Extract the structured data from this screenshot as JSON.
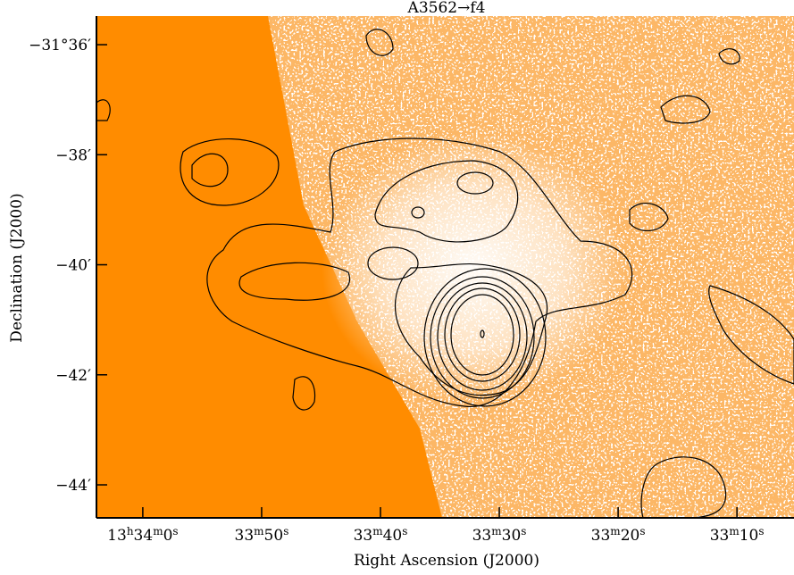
{
  "chart_data": {
    "type": "image",
    "title": "A3562→f4",
    "x_label": "Right Ascension (J2000)",
    "y_label": "Declination (J2000)",
    "xlim": [
      63.9,
      5.2
    ],
    "ylim": [
      -35.48,
      -44.6
    ],
    "xticks": [
      {
        "value": 60,
        "label": [
          "13",
          "h",
          "34",
          "m",
          "0",
          "s"
        ]
      },
      {
        "value": 50,
        "label": [
          "33",
          "m",
          "50",
          "s"
        ]
      },
      {
        "value": 40,
        "label": [
          "33",
          "m",
          "40",
          "s"
        ]
      },
      {
        "value": 30,
        "label": [
          "33",
          "m",
          "30",
          "s"
        ]
      },
      {
        "value": 20,
        "label": [
          "33",
          "m",
          "20",
          "s"
        ]
      },
      {
        "value": 10,
        "label": [
          "33",
          "m",
          "10",
          "s"
        ]
      }
    ],
    "yticks": [
      {
        "value": -36,
        "label": "−31°36′"
      },
      {
        "value": -38,
        "label": "−38′"
      },
      {
        "value": -40,
        "label": "−40′"
      },
      {
        "value": -42,
        "label": "−42′"
      },
      {
        "value": -44,
        "label": "−44′"
      }
    ],
    "color": "#ff8c00"
  }
}
